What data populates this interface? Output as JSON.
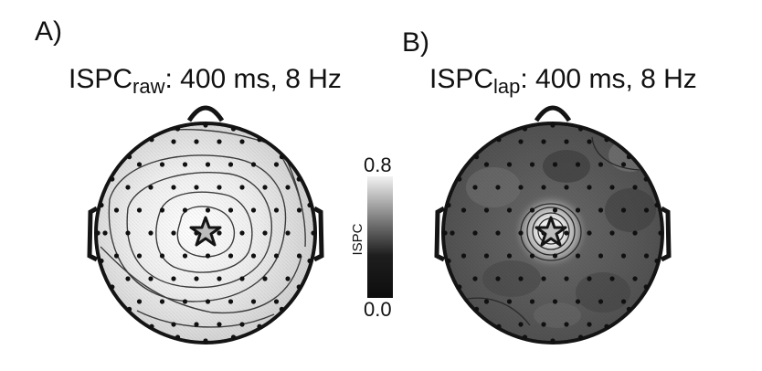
{
  "panels": [
    {
      "label": "A)",
      "title_main": "ISPC",
      "title_sub": "raw",
      "title_rest": ": 400 ms, 8 Hz",
      "map_tone": "light"
    },
    {
      "label": "B)",
      "title_main": "ISPC",
      "title_sub": "lap",
      "title_rest": ": 400 ms, 8 Hz",
      "map_tone": "dark"
    }
  ],
  "colorbar": {
    "label": "ISPC",
    "max_label": "0.8",
    "min_label": "0.0",
    "range": [
      0.0,
      0.8
    ],
    "colors": [
      "#0d0d0d",
      "#5a5a5a",
      "#f2f2f2"
    ]
  },
  "seed_marker": "star-icon",
  "colors": {
    "outline": "#141414",
    "electrode": "#101010",
    "contour": "#3c3c3c",
    "light_map": "#e2e2e2",
    "dark_map": "#585858"
  }
}
